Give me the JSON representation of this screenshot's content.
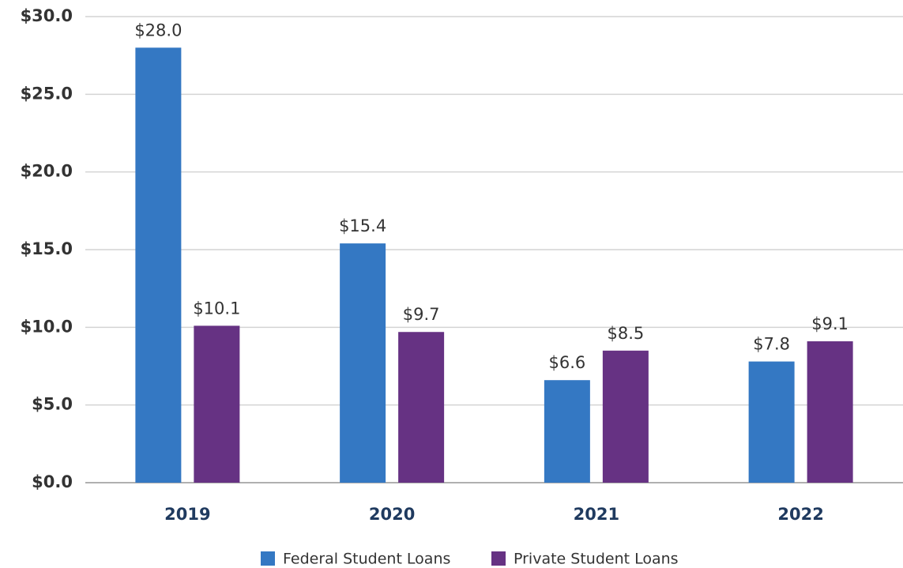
{
  "chart_data": {
    "type": "bar",
    "categories": [
      "2019",
      "2020",
      "2021",
      "2022"
    ],
    "series": [
      {
        "name": "Federal Student Loans",
        "color": "#3478c3",
        "values": [
          28.0,
          15.4,
          6.6,
          7.8
        ],
        "value_labels": [
          "$28.0",
          "$15.4",
          "$6.6",
          "$7.8"
        ]
      },
      {
        "name": "Private Student Loans",
        "color": "#663283",
        "values": [
          10.1,
          9.7,
          8.5,
          9.1
        ],
        "value_labels": [
          "$10.1",
          "$9.7",
          "$8.5",
          "$9.1"
        ]
      }
    ],
    "ylim": [
      0,
      30
    ],
    "yticks": [
      {
        "value": 0,
        "label": "$0.0"
      },
      {
        "value": 5,
        "label": "$5.0"
      },
      {
        "value": 10,
        "label": "$10.0"
      },
      {
        "value": 15,
        "label": "$15.0"
      },
      {
        "value": 20,
        "label": "$20.0"
      },
      {
        "value": 25,
        "label": "$25.0"
      },
      {
        "value": 30,
        "label": "$30.0"
      }
    ],
    "grid": true,
    "legend": "bottom"
  }
}
